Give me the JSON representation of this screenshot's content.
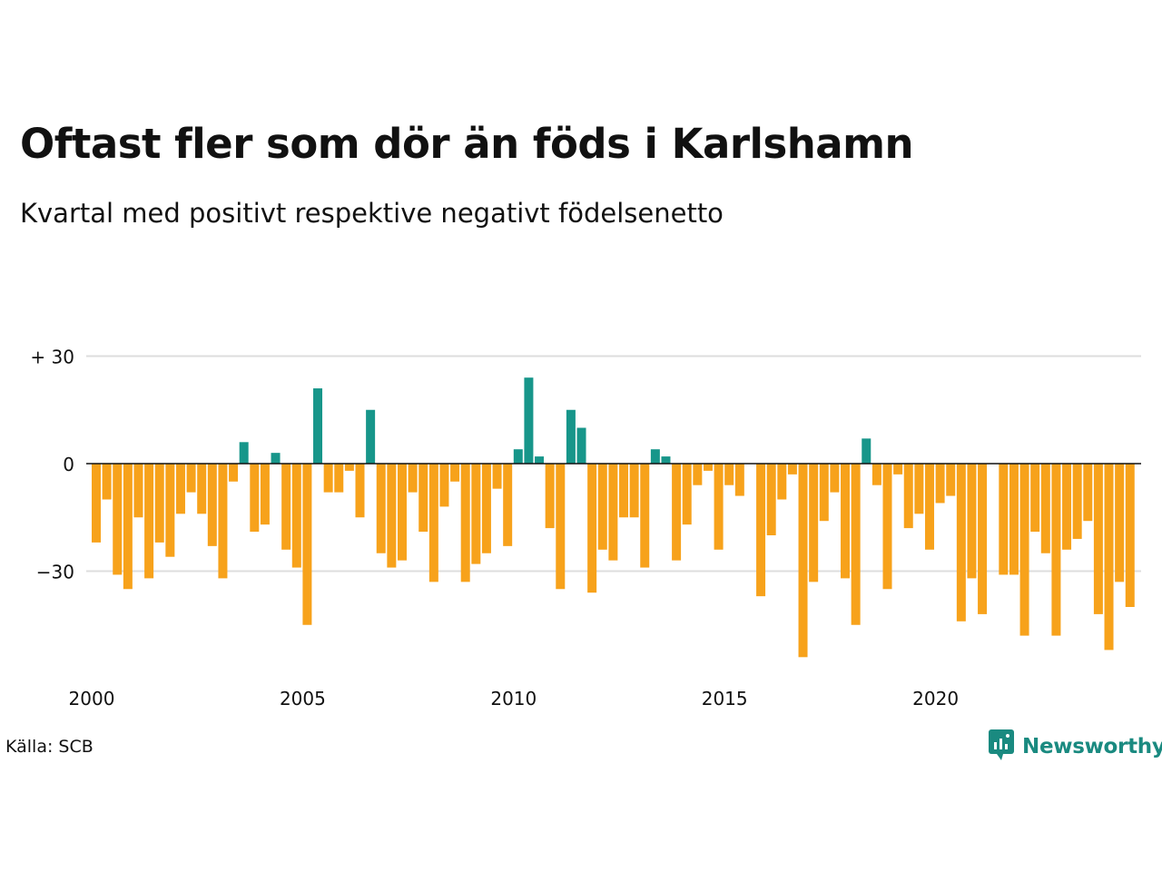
{
  "title": "Oftast fler som dör än föds i Karlshamn",
  "subtitle": "Kvartal med positivt respektive negativt födelsenetto",
  "source": "Källa: SCB",
  "brand": "Newsworthy",
  "colors": {
    "positive": "#17968a",
    "negative": "#f7a21b",
    "grid": "#dddddd",
    "brand": "#1a8a80"
  },
  "chart_data": {
    "type": "bar",
    "ylim": [
      -55,
      35
    ],
    "yticks": [
      {
        "value": 30,
        "label": "+ 30"
      },
      {
        "value": 0,
        "label": "0"
      },
      {
        "value": -30,
        "label": "−30"
      }
    ],
    "xticks": [
      {
        "year": 2000,
        "label": "2000"
      },
      {
        "year": 2005,
        "label": "2005"
      },
      {
        "year": 2010,
        "label": "2010"
      },
      {
        "year": 2015,
        "label": "2015"
      },
      {
        "year": 2020,
        "label": "2020"
      }
    ],
    "x_start": "2000 Q1",
    "grid": true,
    "values": [
      -22,
      -10,
      -31,
      -35,
      -15,
      -32,
      -22,
      -26,
      -14,
      -8,
      -14,
      -23,
      -32,
      -5,
      6,
      -19,
      -17,
      3,
      -24,
      -29,
      -45,
      21,
      -8,
      -8,
      -2,
      -15,
      15,
      -25,
      -29,
      -27,
      -8,
      -19,
      -33,
      -12,
      -5,
      -33,
      -28,
      -25,
      -7,
      -23,
      4,
      24,
      2,
      -18,
      -35,
      15,
      10,
      -36,
      -24,
      -27,
      -15,
      -15,
      -29,
      4,
      2,
      -27,
      -17,
      -6,
      -2,
      -24,
      -6,
      -9,
      0,
      -37,
      -20,
      -10,
      -3,
      -54,
      -33,
      -16,
      -8,
      -32,
      -45,
      7,
      -6,
      -35,
      -3,
      -18,
      -14,
      -24,
      -11,
      -9,
      -44,
      -32,
      -42,
      0,
      -31,
      -31,
      -48,
      -19,
      -25,
      -48,
      -24,
      -21,
      -16,
      -42,
      -52,
      -33,
      -40
    ]
  }
}
